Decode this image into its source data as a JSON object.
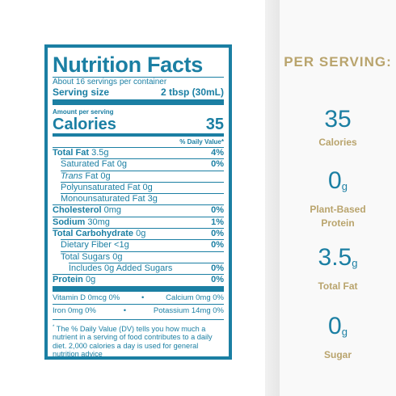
{
  "label": {
    "title": "Nutrition Facts",
    "servings": "About 16 servings per container",
    "serving_size_label": "Serving size",
    "serving_size_value": "2 tbsp (30mL)",
    "amount_per_serving": "Amount per serving",
    "calories_label": "Calories",
    "calories_value": "35",
    "dv_header": "% Daily Value*",
    "rows": [
      {
        "name": "Total Fat",
        "amount": "3.5g",
        "dv": "4%"
      },
      {
        "name": "Saturated Fat",
        "amount": "0g",
        "dv": "0%"
      },
      {
        "name": "Trans",
        "amount": "Fat 0g"
      },
      {
        "name": "Polyunsaturated Fat",
        "amount": "0g"
      },
      {
        "name": "Monounsaturated Fat",
        "amount": "3g"
      },
      {
        "name": "Cholesterol",
        "amount": "0mg",
        "dv": "0%"
      },
      {
        "name": "Sodium",
        "amount": "30mg",
        "dv": "1%"
      },
      {
        "name": "Total Carbohydrate",
        "amount": "0g",
        "dv": "0%"
      },
      {
        "name": "Dietary Fiber",
        "amount": "<1g",
        "dv": "0%"
      },
      {
        "name": "Total Sugars",
        "amount": "0g"
      },
      {
        "name": "Includes 0g Added Sugars",
        "dv": "0%"
      },
      {
        "name": "Protein",
        "amount": "0g",
        "dv": "0%"
      }
    ],
    "vitamins": [
      [
        "Vitamin D 0mcg 0%",
        "Calcium 0mg 0%"
      ],
      [
        "Iron 0mg 0%",
        "Potassium 14mg 0%"
      ]
    ],
    "separator": "•",
    "footnote_mark": "*",
    "footnote": "The % Daily Value (DV) tells you how much a nutrient in a serving of food contributes to a daily diet. 2,000 calories a day is used for general nutrition advice"
  },
  "per_serving": {
    "heading": "PER SERVING:",
    "stats": [
      {
        "value": "35",
        "label": "Calories"
      },
      {
        "value": "0",
        "unit": "g",
        "label": "Plant-Based Protein"
      },
      {
        "value": "3.5",
        "unit": "g",
        "label": "Total Fat"
      },
      {
        "value": "0",
        "unit": "g",
        "label": "Sugar"
      }
    ]
  }
}
